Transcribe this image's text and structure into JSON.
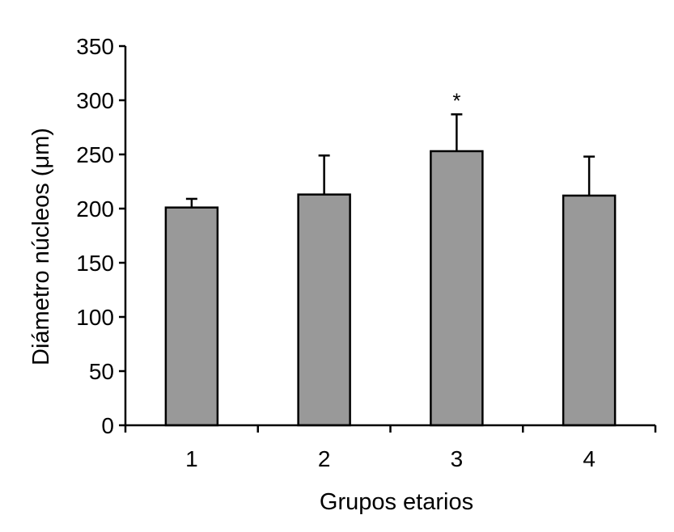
{
  "chart_data": {
    "type": "bar",
    "title": "",
    "xlabel": "Grupos etarios",
    "ylabel": "Diámetro núcleos (μm)",
    "categories": [
      "1",
      "2",
      "3",
      "4"
    ],
    "values": [
      201,
      213,
      253,
      212
    ],
    "error_plus": [
      8,
      36,
      34,
      36
    ],
    "annotations": [
      {
        "category": "3",
        "text": "*"
      }
    ],
    "ylim": [
      0,
      350
    ],
    "yticks": [
      0,
      50,
      100,
      150,
      200,
      250,
      300,
      350
    ],
    "grid": false,
    "legend": "none",
    "colors": {
      "bar_fill": "#999999",
      "bar_stroke": "#000000",
      "axis": "#000000"
    }
  }
}
